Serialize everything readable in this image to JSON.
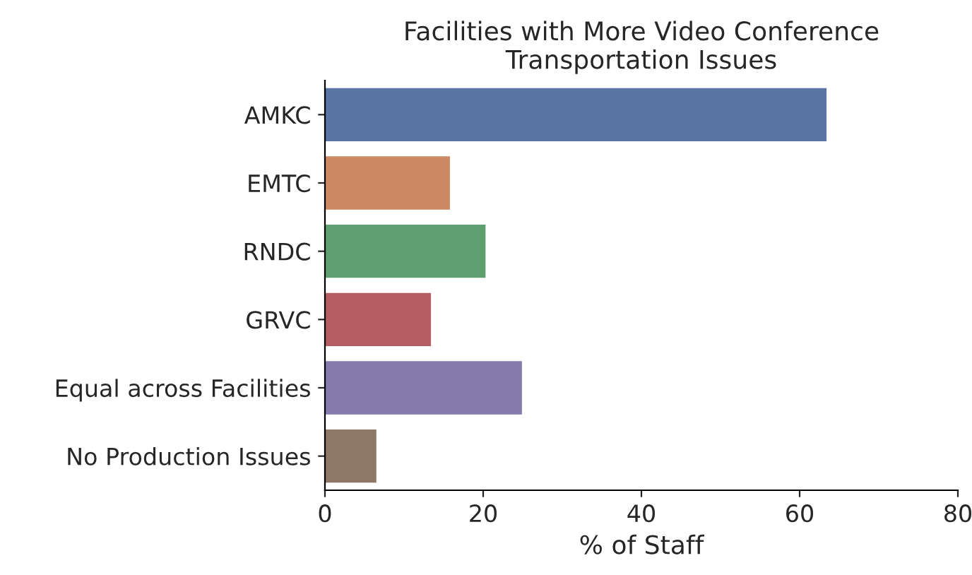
{
  "chart_data": {
    "type": "bar",
    "orientation": "horizontal",
    "title": "Facilities with More Video Conference\nTransportation Issues",
    "xlabel": "% of Staff",
    "categories": [
      "AMKC",
      "EMTC",
      "RNDC",
      "GRVC",
      "Equal across Facilities",
      "No Production Issues"
    ],
    "values": [
      63.4,
      15.8,
      20.3,
      13.4,
      24.9,
      6.5
    ],
    "colors": [
      "#5875a4",
      "#cc8963",
      "#5f9e6e",
      "#b55d60",
      "#857aab",
      "#8d7866"
    ],
    "xlim": [
      0,
      80
    ],
    "xticks": [
      0,
      20,
      40,
      60,
      80
    ],
    "grid": false,
    "legend": false
  }
}
